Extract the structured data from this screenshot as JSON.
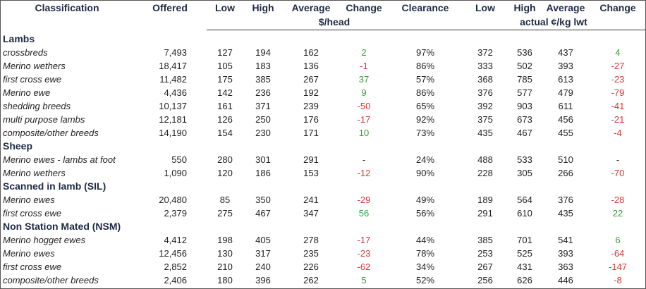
{
  "header": {
    "classification": "Classification",
    "offered": "Offered",
    "low": "Low",
    "high": "High",
    "average": "Average",
    "change": "Change",
    "clearance": "Clearance",
    "low2": "Low",
    "high2": "High",
    "average2": "Average",
    "change2": "Change",
    "unit_head": "$/head",
    "unit_kg": "actual ¢/kg lwt"
  },
  "sections": [
    {
      "title": "Lambs",
      "rows": [
        {
          "name": "crossbreds",
          "offered": "7,493",
          "low": "127",
          "high": "194",
          "avg": "162",
          "change": "2",
          "clearance": "97%",
          "low2": "372",
          "high2": "536",
          "avg2": "437",
          "change2": "4"
        },
        {
          "name": "Merino wethers",
          "offered": "18,417",
          "low": "105",
          "high": "183",
          "avg": "136",
          "change": "-1",
          "clearance": "86%",
          "low2": "333",
          "high2": "502",
          "avg2": "393",
          "change2": "-27"
        },
        {
          "name": "first cross ewe",
          "offered": "11,482",
          "low": "175",
          "high": "385",
          "avg": "267",
          "change": "37",
          "clearance": "57%",
          "low2": "368",
          "high2": "785",
          "avg2": "613",
          "change2": "-23"
        },
        {
          "name": "Merino ewe",
          "offered": "4,436",
          "low": "142",
          "high": "236",
          "avg": "192",
          "change": "9",
          "clearance": "86%",
          "low2": "376",
          "high2": "577",
          "avg2": "479",
          "change2": "-79"
        },
        {
          "name": "shedding breeds",
          "offered": "10,137",
          "low": "161",
          "high": "371",
          "avg": "239",
          "change": "-50",
          "clearance": "65%",
          "low2": "392",
          "high2": "903",
          "avg2": "611",
          "change2": "-41"
        },
        {
          "name": "multi purpose lambs",
          "offered": "12,181",
          "low": "126",
          "high": "250",
          "avg": "176",
          "change": "-17",
          "clearance": "92%",
          "low2": "375",
          "high2": "673",
          "avg2": "456",
          "change2": "-21"
        },
        {
          "name": "composite/other breeds",
          "offered": "14,190",
          "low": "154",
          "high": "230",
          "avg": "171",
          "change": "10",
          "clearance": "73%",
          "low2": "435",
          "high2": "467",
          "avg2": "455",
          "change2": "-4"
        }
      ]
    },
    {
      "title": "Sheep",
      "rows": [
        {
          "name": "Merino ewes - lambs at foot",
          "offered": "550",
          "low": "280",
          "high": "301",
          "avg": "291",
          "change": "-",
          "clearance": "24%",
          "low2": "488",
          "high2": "533",
          "avg2": "510",
          "change2": "-"
        },
        {
          "name": "Merino wethers",
          "offered": "1,090",
          "low": "120",
          "high": "186",
          "avg": "153",
          "change": "-12",
          "clearance": "90%",
          "low2": "228",
          "high2": "305",
          "avg2": "266",
          "change2": "-70"
        }
      ]
    },
    {
      "title": "Scanned in lamb (SIL)",
      "rows": [
        {
          "name": "Merino ewes",
          "offered": "20,480",
          "low": "85",
          "high": "350",
          "avg": "241",
          "change": "-29",
          "clearance": "49%",
          "low2": "189",
          "high2": "564",
          "avg2": "376",
          "change2": "-28"
        },
        {
          "name": "first cross ewe",
          "offered": "2,379",
          "low": "275",
          "high": "467",
          "avg": "347",
          "change": "56",
          "clearance": "56%",
          "low2": "291",
          "high2": "610",
          "avg2": "435",
          "change2": "22"
        }
      ]
    },
    {
      "title": "Non Station Mated (NSM)",
      "rows": [
        {
          "name": "Merino hogget ewes",
          "offered": "4,412",
          "low": "198",
          "high": "405",
          "avg": "278",
          "change": "-17",
          "clearance": "44%",
          "low2": "385",
          "high2": "701",
          "avg2": "541",
          "change2": "6"
        },
        {
          "name": "Merino ewes",
          "offered": "12,456",
          "low": "130",
          "high": "317",
          "avg": "235",
          "change": "-23",
          "clearance": "78%",
          "low2": "253",
          "high2": "525",
          "avg2": "393",
          "change2": "-64"
        },
        {
          "name": "first cross ewe",
          "offered": "2,852",
          "low": "210",
          "high": "240",
          "avg": "226",
          "change": "-62",
          "clearance": "34%",
          "low2": "267",
          "high2": "431",
          "avg2": "363",
          "change2": "-147"
        },
        {
          "name": "composite/other breeds",
          "offered": "2,406",
          "low": "180",
          "high": "396",
          "avg": "262",
          "change": "5",
          "clearance": "52%",
          "low2": "256",
          "high2": "626",
          "avg2": "446",
          "change2": "-8"
        }
      ]
    }
  ],
  "colors": {
    "positive": "#3c9b3c",
    "negative": "#d13a3a",
    "header": "#1e2a44"
  }
}
